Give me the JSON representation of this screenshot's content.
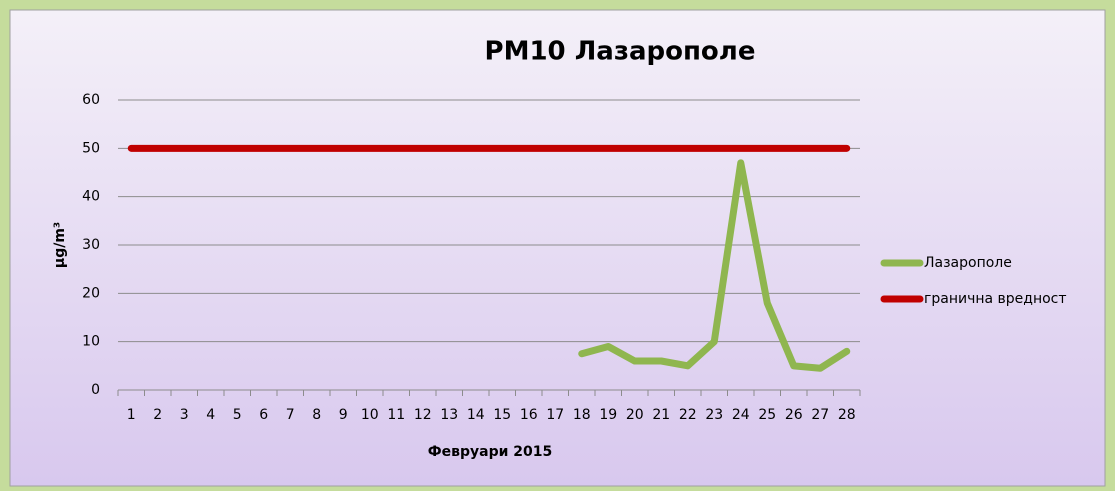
{
  "chart_data": {
    "type": "line",
    "title": "PM10 Лазарополе",
    "x_label": "Февруари 2015",
    "y_label": "µg/m³",
    "categories": [
      "1",
      "2",
      "3",
      "4",
      "5",
      "6",
      "7",
      "8",
      "9",
      "10",
      "11",
      "12",
      "13",
      "14",
      "15",
      "16",
      "17",
      "18",
      "19",
      "20",
      "21",
      "22",
      "23",
      "24",
      "25",
      "26",
      "27",
      "28"
    ],
    "series": [
      {
        "name": "Лазарополе",
        "color": "#8fb64f",
        "values": [
          null,
          null,
          null,
          null,
          null,
          null,
          null,
          null,
          null,
          null,
          null,
          null,
          null,
          null,
          null,
          null,
          null,
          7.5,
          9,
          6,
          6,
          5,
          10,
          47,
          18,
          5,
          4.5,
          8
        ]
      },
      {
        "name": "гранична вредност",
        "color": "#c00000",
        "values": [
          50,
          50,
          50,
          50,
          50,
          50,
          50,
          50,
          50,
          50,
          50,
          50,
          50,
          50,
          50,
          50,
          50,
          50,
          50,
          50,
          50,
          50,
          50,
          50,
          50,
          50,
          50,
          50
        ]
      }
    ],
    "ylim": [
      0,
      60
    ],
    "yticks": [
      0,
      10,
      20,
      30,
      40,
      50,
      60
    ],
    "grid": true,
    "legend": "right"
  }
}
